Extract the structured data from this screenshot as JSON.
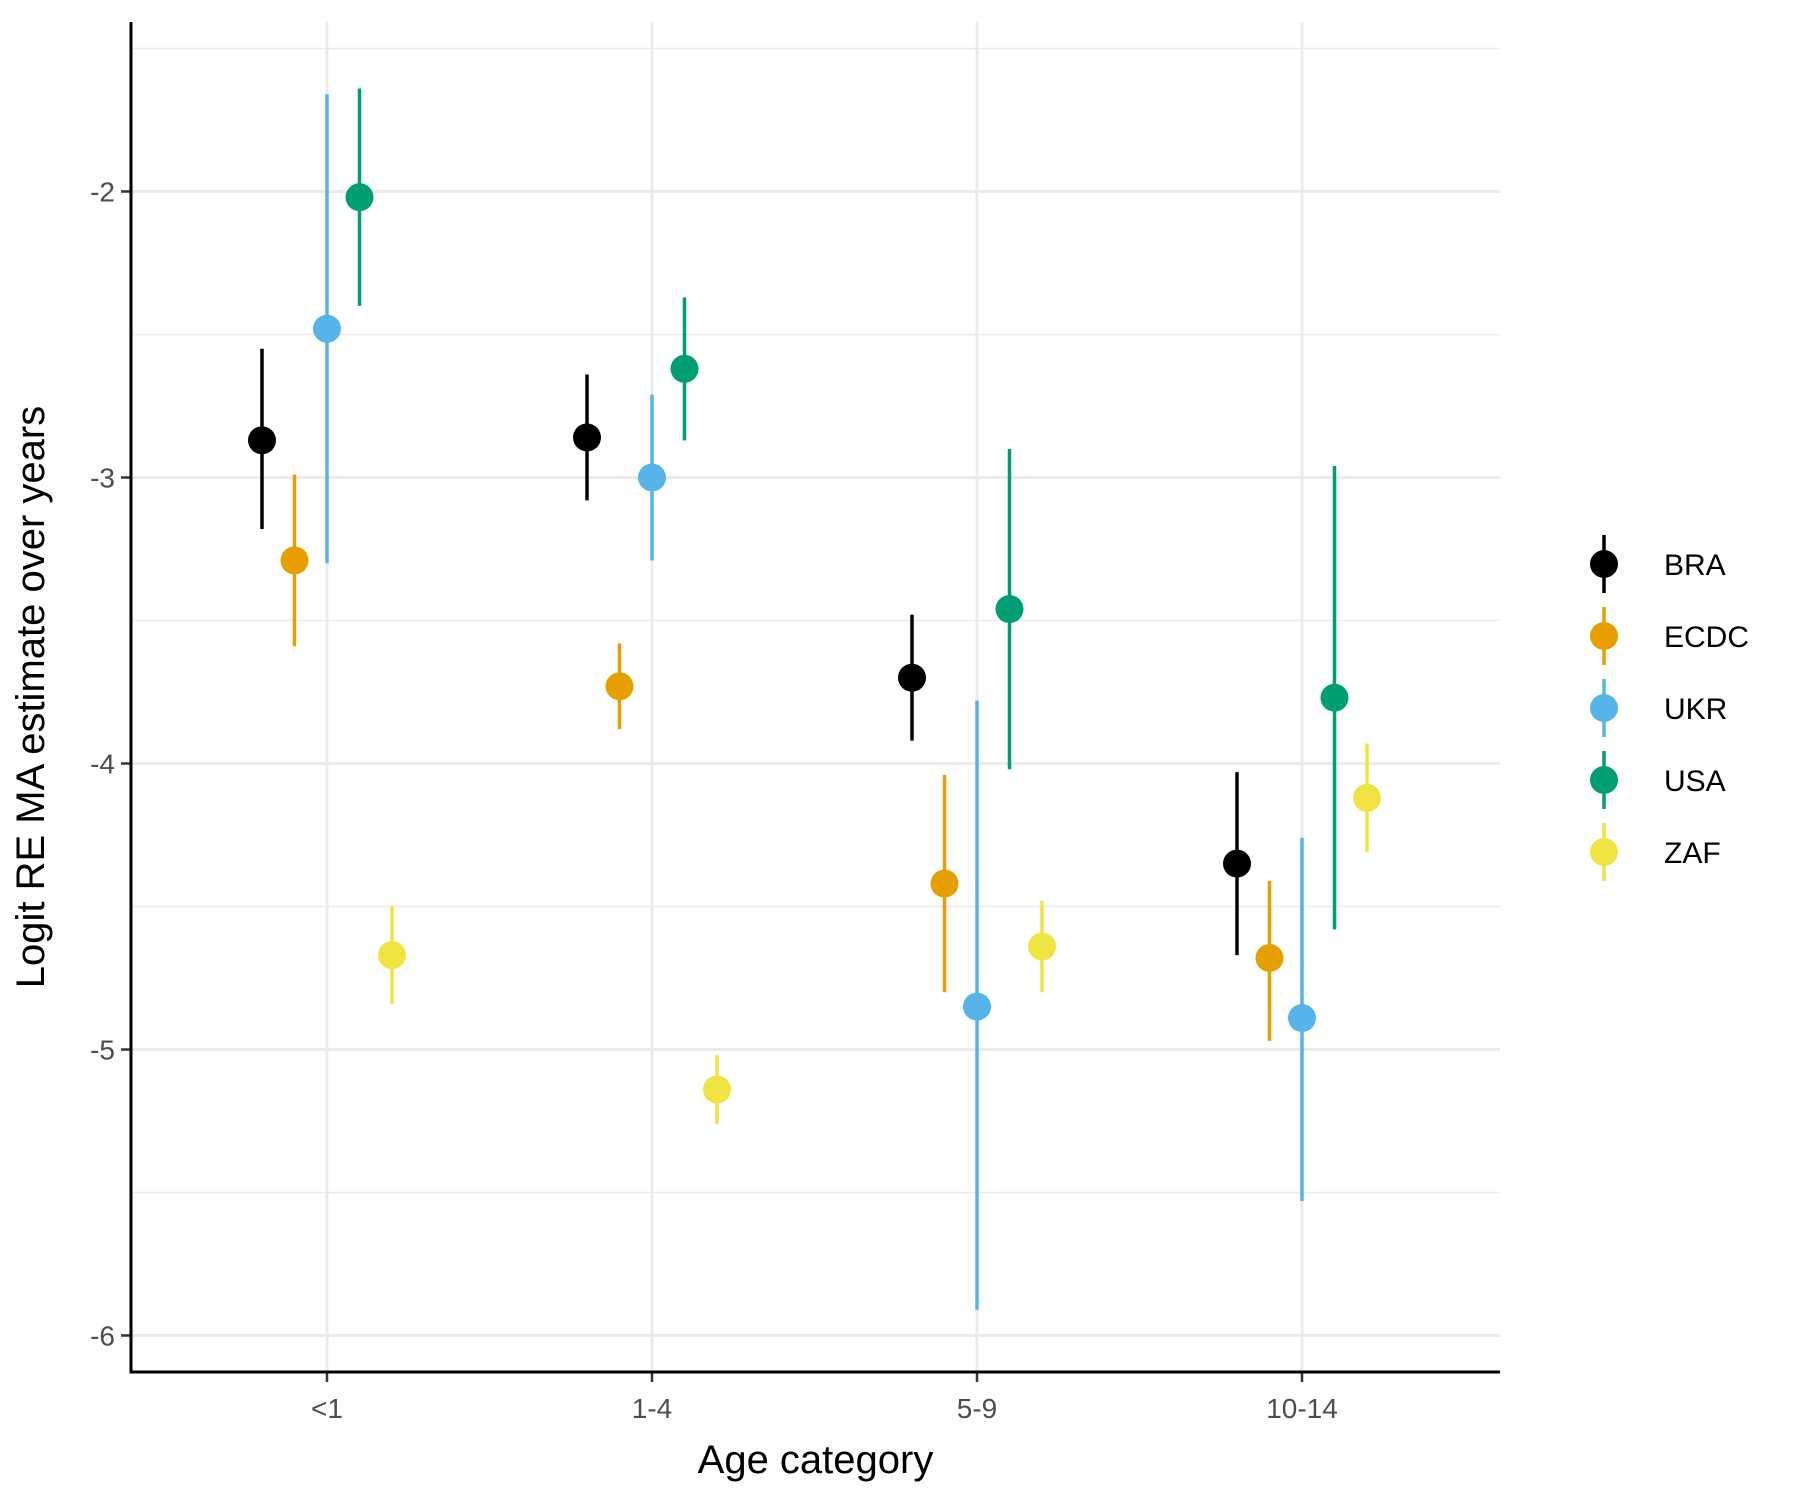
{
  "chart_data": {
    "type": "scatter",
    "subtype": "pointrange",
    "title": "",
    "xlabel": "Age category",
    "ylabel": "Logit RE MA estimate over years",
    "categories": [
      "<1",
      "1-4",
      "5-9",
      "10-14"
    ],
    "ylim": [
      -6.12,
      -1.5
    ],
    "yticks": [
      -6,
      -5,
      -4,
      -3,
      -2
    ],
    "ytick_labels": [
      "-6",
      "-5",
      "-4",
      "-3",
      "-2"
    ],
    "grid": true,
    "legend_position": "right",
    "series": [
      {
        "name": "BRA",
        "color": "#000000",
        "values": [
          -2.87,
          -2.86,
          -3.7,
          -4.35
        ],
        "lower": [
          -3.18,
          -3.08,
          -3.92,
          -4.67
        ],
        "upper": [
          -2.55,
          -2.64,
          -3.48,
          -4.03
        ]
      },
      {
        "name": "ECDC",
        "color": "#E69F00",
        "values": [
          -3.29,
          -3.73,
          -4.42,
          -4.68
        ],
        "lower": [
          -3.59,
          -3.88,
          -4.8,
          -4.97
        ],
        "upper": [
          -2.99,
          -3.58,
          -4.04,
          -4.41
        ]
      },
      {
        "name": "UKR",
        "color": "#56B4E9",
        "values": [
          -2.48,
          -3.0,
          -4.85,
          -4.89
        ],
        "lower": [
          -3.3,
          -3.29,
          -5.91,
          -5.53
        ],
        "upper": [
          -1.66,
          -2.71,
          -3.78,
          -4.26
        ]
      },
      {
        "name": "USA",
        "color": "#009E73",
        "values": [
          -2.02,
          -2.62,
          -3.46,
          -3.77
        ],
        "lower": [
          -2.4,
          -2.87,
          -4.02,
          -4.58
        ],
        "upper": [
          -1.64,
          -2.37,
          -2.9,
          -2.96
        ]
      },
      {
        "name": "ZAF",
        "color": "#F0E442",
        "values": [
          -4.67,
          -5.14,
          -4.64,
          -4.12
        ],
        "lower": [
          -4.84,
          -5.26,
          -4.8,
          -4.31
        ],
        "upper": [
          -4.5,
          -5.02,
          -4.48,
          -3.93
        ]
      }
    ]
  }
}
